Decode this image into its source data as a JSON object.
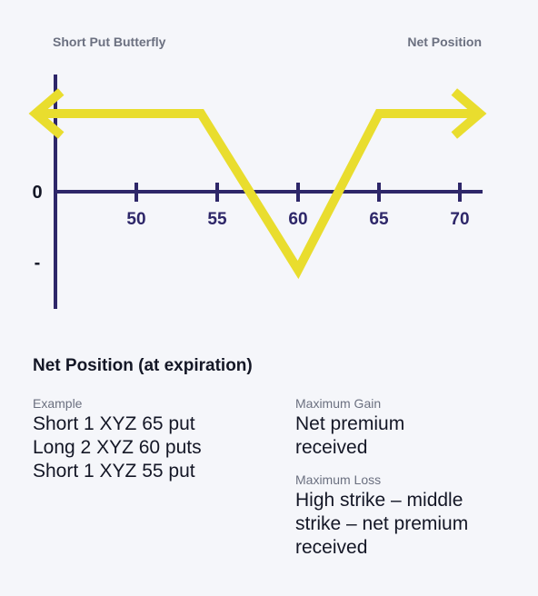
{
  "chart_data": {
    "type": "line",
    "title": "Short Put Butterfly",
    "subtitle": "Net Position",
    "x_ticks": [
      50,
      55,
      60,
      65,
      70
    ],
    "y_labels": [
      "+",
      "0",
      "-"
    ],
    "series": [
      {
        "x": [
          44,
          54,
          60,
          65,
          71
        ],
        "y": [
          1,
          1,
          -1,
          1,
          1
        ]
      }
    ],
    "arrows": {
      "left": true,
      "right": true
    },
    "colors": {
      "axis": "#2e2769",
      "payoff": "#e9dd2e"
    }
  },
  "section": {
    "heading": "Net Position (at expiration)"
  },
  "example": {
    "label": "Example",
    "lines": [
      "Short 1 XYZ 65 put",
      "Long 2 XYZ 60 puts",
      "Short 1 XYZ 55 put"
    ]
  },
  "max_gain": {
    "label": "Maximum Gain",
    "lines": [
      "Net premium",
      "received"
    ]
  },
  "max_loss": {
    "label": "Maximum Loss",
    "lines": [
      "High strike – middle",
      "strike – net premium",
      "received"
    ]
  }
}
